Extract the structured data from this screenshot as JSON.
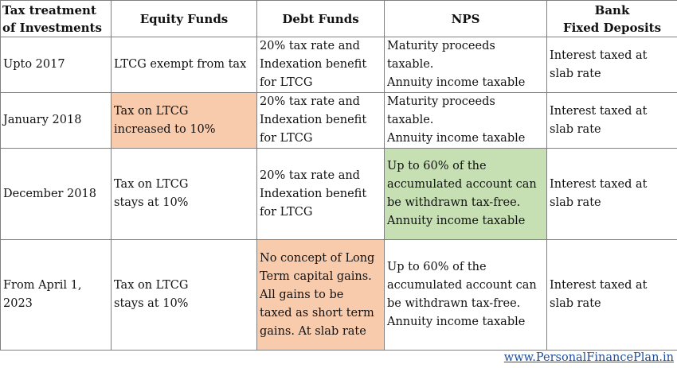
{
  "table": {
    "headers": {
      "col0": "Tax treatment\nof Investments",
      "col1": "Equity Funds",
      "col2": "Debt Funds",
      "col3": "NPS",
      "col4": "Bank\nFixed Deposits"
    },
    "rows": [
      {
        "period": "Upto 2017",
        "equity": "LTCG exempt from tax",
        "debt": "20% tax rate and\nIndexation benefit\nfor LTCG",
        "nps": "Maturity proceeds\ntaxable.\nAnnuity income taxable",
        "fd": "Interest taxed at\nslab rate"
      },
      {
        "period": "January 2018",
        "equity": "Tax on LTCG\nincreased to 10%",
        "debt": "20% tax rate and\nIndexation benefit\nfor LTCG",
        "nps": "Maturity proceeds\ntaxable.\nAnnuity income taxable",
        "fd": "Interest taxed at\nslab rate"
      },
      {
        "period": "December 2018",
        "equity": "Tax on LTCG\nstays at 10%",
        "debt": "20% tax rate and\nIndexation benefit\nfor LTCG",
        "nps": "Up to 60% of the\naccumulated account can\nbe withdrawn tax-free.\nAnnuity income taxable",
        "fd": "Interest taxed at\nslab rate"
      },
      {
        "period": "From April 1,\n2023",
        "equity": "Tax on LTCG\nstays at 10%",
        "debt": "No concept of Long\nTerm capital gains.\nAll gains to be\ntaxed as short term\ngains. At slab rate",
        "nps": "Up to 60% of the\naccumulated account can\nbe withdrawn tax-free.\nAnnuity income taxable",
        "fd": "Interest taxed at\nslab rate"
      }
    ]
  },
  "highlight_colors": {
    "peach": "#f8cbad",
    "green": "#c6e0b4"
  },
  "footer": {
    "link_text": "www.PersonalFinancePlan.in",
    "link_color": "#1f4e9b"
  }
}
